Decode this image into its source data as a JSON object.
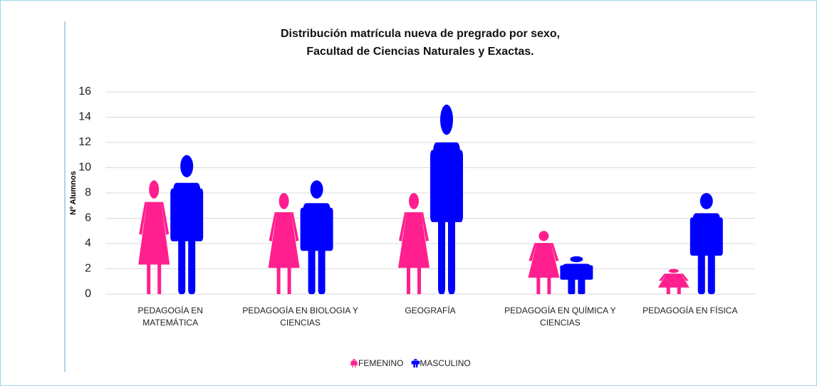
{
  "chart_data": {
    "type": "pictograph",
    "title": "Distribución matrícula nueva de pregrado por sexo,\nFacultad de Ciencias Naturales y Exactas.",
    "y_label": "Nº Alumnos",
    "categories": [
      "PEDAGOGÍA EN MATEMÁTICA",
      "PEDAGOGÍA EN BIOLOGIA Y CIENCIAS",
      "GEOGRAFÍA",
      "PEDAGOGÍA EN QUÍMICA Y CIENCIAS",
      "PEDAGOGÍA EN FÍSICA"
    ],
    "series": [
      {
        "name": "FEMENINO",
        "color": "#ff1f8e",
        "values": [
          9,
          8,
          8,
          5,
          2
        ]
      },
      {
        "name": "MASCULINO",
        "color": "#0000ff",
        "values": [
          11,
          9,
          15,
          3,
          8
        ]
      }
    ],
    "ylim": [
      0,
      16
    ],
    "yticks": [
      0,
      2,
      4,
      6,
      8,
      10,
      12,
      14,
      16
    ],
    "grid": true,
    "legend": "bottom"
  }
}
